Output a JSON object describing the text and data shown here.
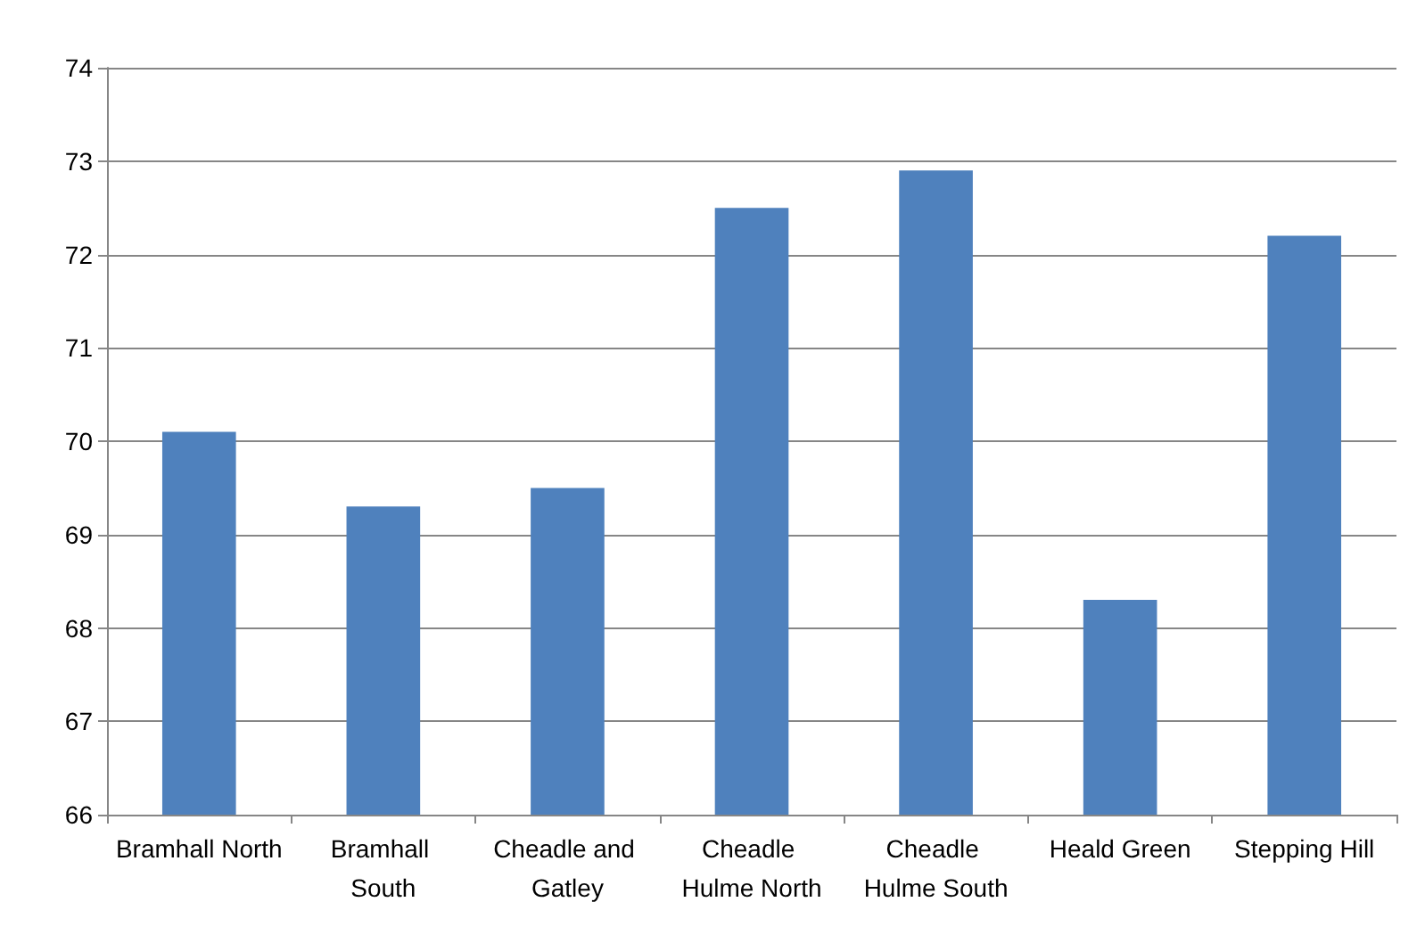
{
  "chart_data": {
    "type": "bar",
    "categories": [
      "Bramhall North",
      "Bramhall South",
      "Cheadle and Gatley",
      "Cheadle Hulme North",
      "Cheadle Hulme South",
      "Heald Green",
      "Stepping Hill"
    ],
    "values": [
      70.1,
      69.3,
      69.5,
      72.5,
      72.9,
      68.3,
      72.2
    ],
    "color": "#4f81bd",
    "ylim": [
      66,
      74
    ],
    "yticks": [
      66,
      67,
      68,
      69,
      70,
      71,
      72,
      73,
      74
    ],
    "grid": "y"
  }
}
